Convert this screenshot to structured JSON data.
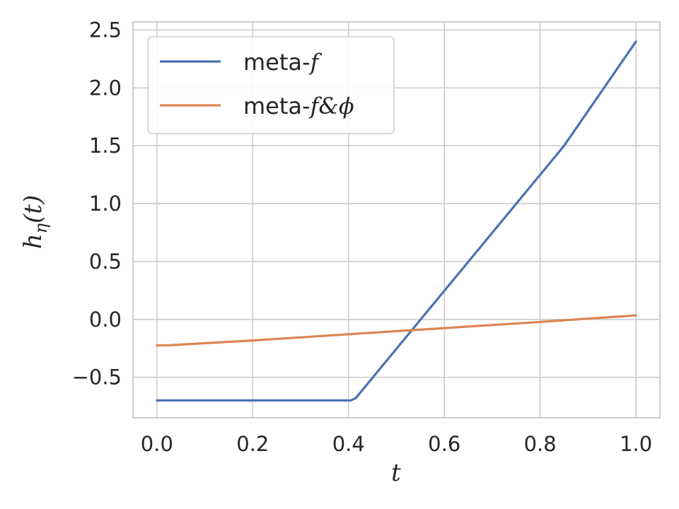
{
  "chart_data": {
    "type": "line",
    "xlabel": "t",
    "ylabel": "h_η(t)",
    "ylabel_main": "h",
    "ylabel_sub": "η",
    "ylabel_tail": "(t)",
    "xlim": [
      -0.05,
      1.05
    ],
    "ylim": [
      -0.85,
      2.57
    ],
    "xticks": [
      0.0,
      0.2,
      0.4,
      0.6,
      0.8,
      1.0
    ],
    "xtick_labels": [
      "0.0",
      "0.2",
      "0.4",
      "0.6",
      "0.8",
      "1.0"
    ],
    "yticks": [
      -0.5,
      0.0,
      0.5,
      1.0,
      1.5,
      2.0,
      2.5
    ],
    "ytick_labels": [
      "−0.5",
      "0.0",
      "0.5",
      "1.0",
      "1.5",
      "2.0",
      "2.5"
    ],
    "grid": true,
    "legend_position": "top-left",
    "series": [
      {
        "name": "meta-f",
        "name_prefix": "meta-",
        "name_italic": "f",
        "color": "#4c72b0",
        "x": [
          0.0,
          0.405,
          0.415,
          0.85,
          1.0
        ],
        "y": [
          -0.7,
          -0.7,
          -0.68,
          1.5,
          2.4
        ]
      },
      {
        "name": "meta-f&ϕ",
        "name_prefix": "meta-",
        "name_italic": "f&ϕ",
        "color": "#dd8452",
        "x": [
          0.0,
          0.03,
          0.2,
          0.4,
          0.6,
          0.8,
          1.0
        ],
        "y": [
          -0.225,
          -0.222,
          -0.182,
          -0.128,
          -0.075,
          -0.022,
          0.035
        ]
      }
    ]
  }
}
